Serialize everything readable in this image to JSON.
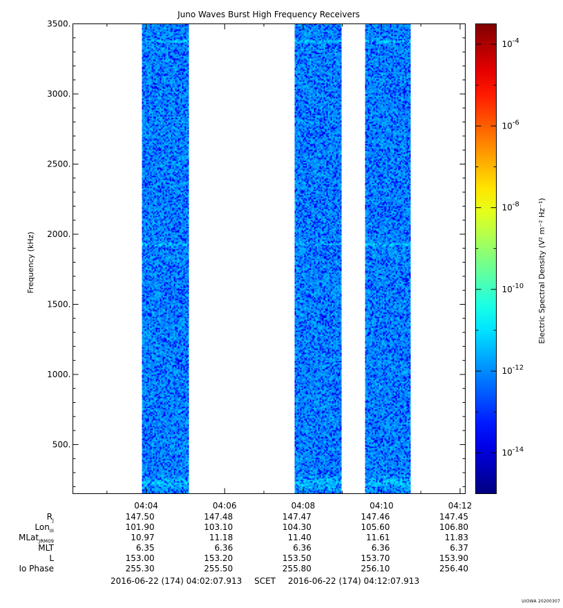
{
  "chart_data": {
    "type": "heatmap",
    "title": "Juno Waves Burst High Frequency Receivers",
    "ylabel": "Frequency (kHz)",
    "ylim": [
      150,
      3500
    ],
    "y_ticks": [
      "500.",
      "1000.",
      "1500.",
      "2000.",
      "2500.",
      "3000.",
      "3500."
    ],
    "y_tick_values": [
      500,
      1000,
      1500,
      2000,
      2500,
      3000,
      3500
    ],
    "x_range": [
      "04:02:07.913",
      "04:12:07.913"
    ],
    "x_ticks": [
      "04:04",
      "04:06",
      "04:08",
      "04:10",
      "04:12"
    ],
    "data_intervals": [
      {
        "start": "04:03:54",
        "end": "04:05:04"
      },
      {
        "start": "04:07:48",
        "end": "04:08:57"
      },
      {
        "start": "04:09:35",
        "end": "04:10:44"
      }
    ],
    "background_level_log": -12,
    "emission_bands_khz": [
      230,
      1930,
      3380
    ],
    "colorbar": {
      "label": "Electric Spectral Density (V² m⁻² Hz⁻¹)",
      "scale": "log",
      "range_log": [
        -15,
        -3.5
      ],
      "tick_labels": [
        "10-14",
        "10-12",
        "10-10",
        "10-8",
        "10-6",
        "10-4"
      ],
      "tick_values_log": [
        -14,
        -12,
        -10,
        -8,
        -6,
        -4
      ]
    }
  },
  "ephemeris": {
    "labels": [
      "RJ",
      "LonIII",
      "MLatJRM09",
      "MLT",
      "L",
      "Io Phase"
    ],
    "columns": [
      {
        "time": "04:04",
        "values": [
          "147.50",
          "101.90",
          "10.97",
          "6.35",
          "153.00",
          "255.30"
        ]
      },
      {
        "time": "04:06",
        "values": [
          "147.48",
          "103.10",
          "11.18",
          "6.36",
          "153.20",
          "255.50"
        ]
      },
      {
        "time": "04:08",
        "values": [
          "147.47",
          "104.30",
          "11.40",
          "6.36",
          "153.50",
          "255.80"
        ]
      },
      {
        "time": "04:10",
        "values": [
          "147.46",
          "105.60",
          "11.61",
          "6.36",
          "153.70",
          "256.10"
        ]
      },
      {
        "time": "04:12",
        "values": [
          "147.45",
          "106.80",
          "11.83",
          "6.37",
          "153.90",
          "256.40"
        ]
      }
    ]
  },
  "scet": {
    "start": "2016-06-22 (174) 04:02:07.913",
    "label": "SCET",
    "end": "2016-06-22 (174) 04:12:07.913"
  },
  "footer": "UIOWA 20200307"
}
